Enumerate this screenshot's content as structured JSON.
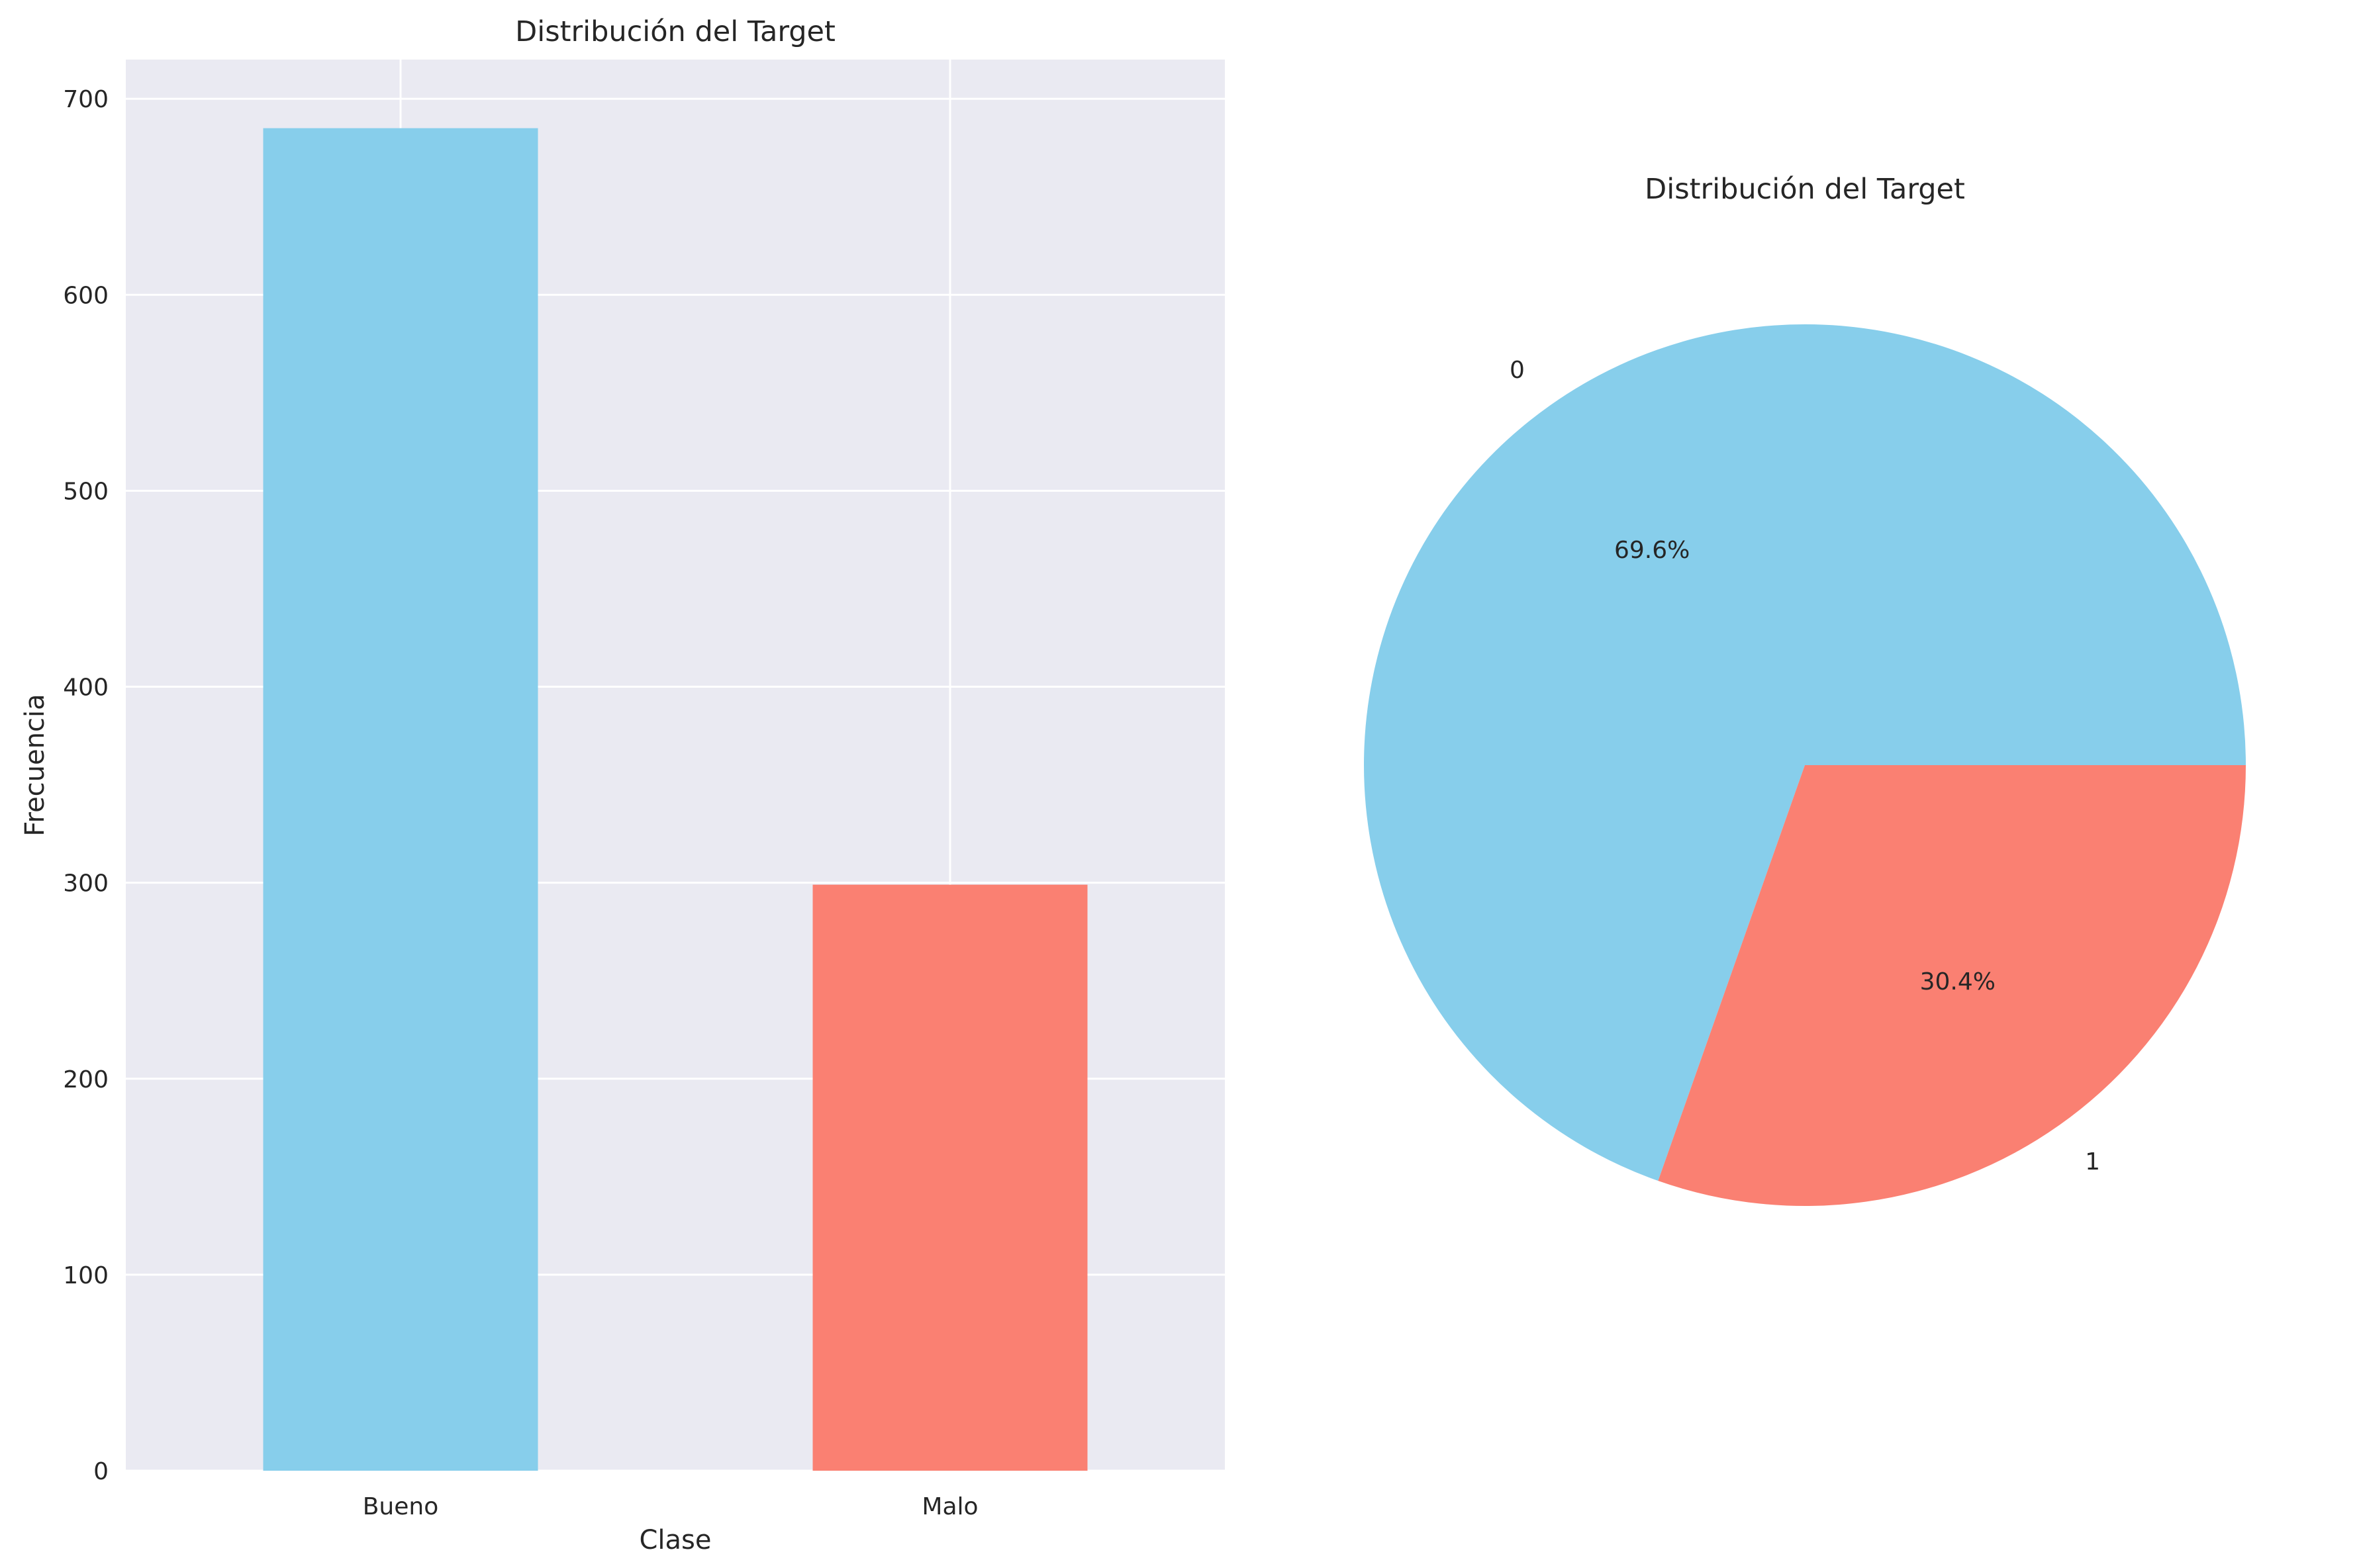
{
  "chart_data": [
    {
      "type": "bar",
      "title": "Distribución del Target",
      "xlabel": "Clase",
      "ylabel": "Frecuencia",
      "categories": [
        "Bueno",
        "Malo"
      ],
      "values": [
        685,
        299
      ],
      "colors": [
        "#87CEEB",
        "#FA8072"
      ],
      "ylim": [
        0,
        720
      ],
      "yticks": [
        0,
        100,
        200,
        300,
        400,
        500,
        600,
        700
      ],
      "grid": true,
      "background": "#EAEAF2"
    },
    {
      "type": "pie",
      "title": "Distribución del Target",
      "labels": [
        "0",
        "1"
      ],
      "values": [
        69.6,
        30.4
      ],
      "autopct": [
        "69.6%",
        "30.4%"
      ],
      "colors": [
        "#87CEEB",
        "#FA8072"
      ]
    }
  ]
}
